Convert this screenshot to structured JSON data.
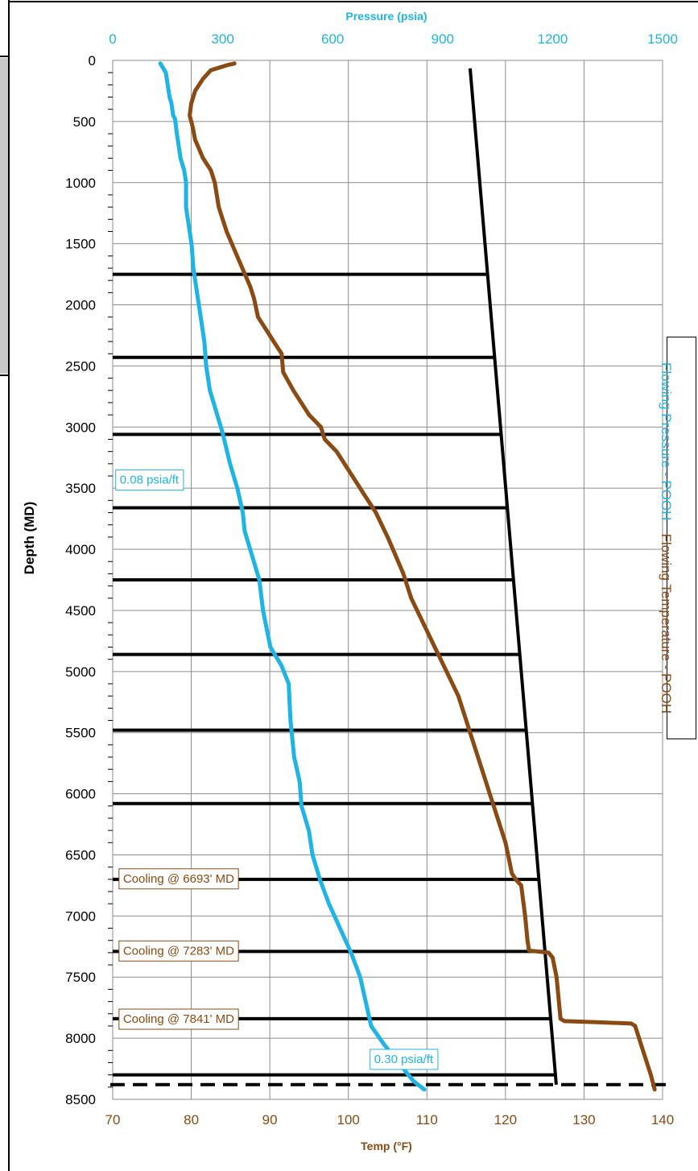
{
  "chart_data": {
    "type": "line",
    "title": "",
    "top_axis": {
      "label": "Pressure (psia)",
      "range": [
        0,
        1500
      ],
      "ticks": [
        "0",
        "300",
        "600",
        "900",
        "1200",
        "1500"
      ],
      "color": "#1fb4e6"
    },
    "bottom_axis": {
      "label": "Temp (°F)",
      "range": [
        70,
        140
      ],
      "ticks": [
        "70",
        "80",
        "90",
        "100",
        "110",
        "120",
        "130",
        "140"
      ],
      "color": "#8b4a12"
    },
    "left_axis": {
      "label": "Depth (MD)",
      "range": [
        0,
        8500
      ],
      "reversed": true,
      "ticks": [
        "0",
        "500",
        "1000",
        "1500",
        "2000",
        "2500",
        "3000",
        "3500",
        "4000",
        "4500",
        "5000",
        "5500",
        "6000",
        "6500",
        "7000",
        "7500",
        "8000",
        "8500"
      ]
    },
    "grid": true,
    "series": [
      {
        "name": "Flowing Pressure - POOH",
        "axis": "pressure",
        "color": "#1fb4e6",
        "points": [
          [
            130,
            25
          ],
          [
            145,
            100
          ],
          [
            150,
            200
          ],
          [
            155,
            300
          ],
          [
            160,
            350
          ],
          [
            165,
            450
          ],
          [
            170,
            480
          ],
          [
            175,
            600
          ],
          [
            180,
            700
          ],
          [
            185,
            800
          ],
          [
            195,
            900
          ],
          [
            200,
            1000
          ],
          [
            200,
            1200
          ],
          [
            205,
            1300
          ],
          [
            215,
            1500
          ],
          [
            220,
            1700
          ],
          [
            230,
            1900
          ],
          [
            240,
            2100
          ],
          [
            250,
            2300
          ],
          [
            255,
            2500
          ],
          [
            265,
            2700
          ],
          [
            285,
            2900
          ],
          [
            300,
            3050
          ],
          [
            320,
            3300
          ],
          [
            340,
            3500
          ],
          [
            355,
            3700
          ],
          [
            360,
            3850
          ],
          [
            380,
            4050
          ],
          [
            400,
            4250
          ],
          [
            410,
            4500
          ],
          [
            430,
            4800
          ],
          [
            460,
            4950
          ],
          [
            480,
            5100
          ],
          [
            485,
            5400
          ],
          [
            495,
            5700
          ],
          [
            510,
            5900
          ],
          [
            515,
            6100
          ],
          [
            535,
            6300
          ],
          [
            545,
            6500
          ],
          [
            565,
            6700
          ],
          [
            590,
            6900
          ],
          [
            620,
            7100
          ],
          [
            650,
            7300
          ],
          [
            675,
            7500
          ],
          [
            690,
            7700
          ],
          [
            705,
            7900
          ],
          [
            740,
            8050
          ],
          [
            780,
            8200
          ],
          [
            820,
            8350
          ],
          [
            850,
            8420
          ]
        ]
      },
      {
        "name": "Flowing Temperature - POOH",
        "color": "#8b4a12",
        "axis": "temperature",
        "points": [
          [
            85.5,
            25
          ],
          [
            84.5,
            40
          ],
          [
            82.5,
            80
          ],
          [
            81.5,
            150
          ],
          [
            80.5,
            250
          ],
          [
            80.0,
            350
          ],
          [
            79.8,
            450
          ],
          [
            80.2,
            550
          ],
          [
            80.5,
            650
          ],
          [
            81.5,
            800
          ],
          [
            82.5,
            900
          ],
          [
            83.0,
            1000
          ],
          [
            83.5,
            1200
          ],
          [
            84.5,
            1400
          ],
          [
            85.5,
            1550
          ],
          [
            86.5,
            1700
          ],
          [
            87.5,
            1850
          ],
          [
            88.0,
            1950
          ],
          [
            88.5,
            2100
          ],
          [
            89.5,
            2200
          ],
          [
            90.5,
            2300
          ],
          [
            91.5,
            2400
          ],
          [
            91.7,
            2550
          ],
          [
            93.0,
            2700
          ],
          [
            95.0,
            2900
          ],
          [
            96.5,
            3000
          ],
          [
            97.0,
            3100
          ],
          [
            98.5,
            3200
          ],
          [
            100.5,
            3400
          ],
          [
            102.0,
            3550
          ],
          [
            103.5,
            3700
          ],
          [
            105.0,
            3900
          ],
          [
            106.0,
            4050
          ],
          [
            107.0,
            4200
          ],
          [
            108.0,
            4400
          ],
          [
            109.5,
            4600
          ],
          [
            111.0,
            4800
          ],
          [
            112.5,
            5000
          ],
          [
            114.0,
            5200
          ],
          [
            115.0,
            5400
          ],
          [
            116.0,
            5600
          ],
          [
            117.0,
            5800
          ],
          [
            118.0,
            6000
          ],
          [
            119.0,
            6200
          ],
          [
            120.0,
            6400
          ],
          [
            120.5,
            6550
          ],
          [
            120.8,
            6650
          ],
          [
            121.3,
            6700
          ],
          [
            122.0,
            6750
          ],
          [
            122.5,
            7000
          ],
          [
            122.8,
            7200
          ],
          [
            123.0,
            7283
          ],
          [
            125.5,
            7300
          ],
          [
            126.0,
            7340
          ],
          [
            126.5,
            7500
          ],
          [
            126.8,
            7700
          ],
          [
            127.0,
            7841
          ],
          [
            127.5,
            7860
          ],
          [
            132.0,
            7870
          ],
          [
            136.0,
            7880
          ],
          [
            136.5,
            7900
          ],
          [
            137.5,
            8100
          ],
          [
            138.5,
            8300
          ],
          [
            139.0,
            8420
          ]
        ]
      }
    ],
    "reference_line": {
      "color": "#000000",
      "points": [
        [
          65,
          975
        ],
        [
          8380,
          1210
        ]
      ]
    },
    "horizontal_lines": [
      1750,
      2430,
      3060,
      3660,
      4250,
      4860,
      5480,
      6080,
      6700,
      7290,
      7840,
      8300
    ],
    "dashed_line_depth": 8380,
    "annotations": [
      {
        "text": "0.08 psia/ft",
        "color": "#1fb4e6",
        "depth": 3430,
        "anchor_axis": "pressure",
        "anchor_value": 6
      },
      {
        "text": "0.30 psia/ft",
        "color": "#1fb4e6",
        "depth": 8170,
        "anchor_axis": "pressure",
        "anchor_value": 700
      },
      {
        "text": "Cooling @ 6693' MD",
        "color": "#8b4a12",
        "depth": 6693,
        "anchor_axis": "pressure",
        "anchor_value": 15
      },
      {
        "text": "Cooling @ 7283' MD",
        "color": "#8b4a12",
        "depth": 7283,
        "anchor_axis": "pressure",
        "anchor_value": 15
      },
      {
        "text": "Cooling @ 7841' MD",
        "color": "#8b4a12",
        "depth": 7841,
        "anchor_axis": "pressure",
        "anchor_value": 15
      }
    ],
    "legend": {
      "placement": "right",
      "entries": [
        "Flowing Pressure - POOH",
        "Flowing Temperature - POOH"
      ]
    }
  }
}
